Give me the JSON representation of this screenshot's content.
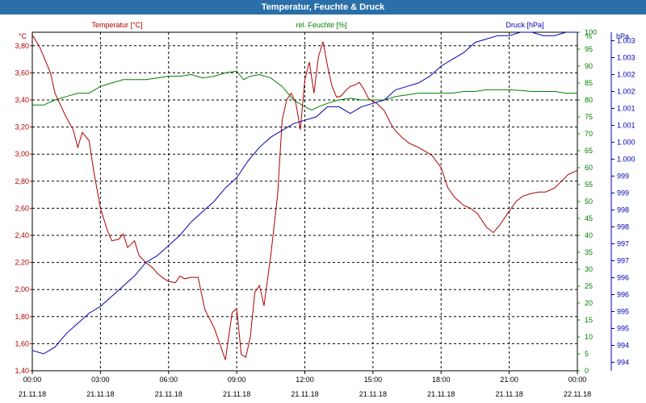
{
  "title": "Temperatur, Feuchte & Druck",
  "colors": {
    "temperature": "#b00000",
    "humidity": "#008000",
    "pressure": "#0000b4",
    "title_bg": "#2a6fa8"
  },
  "chart_data": {
    "type": "line",
    "title": "Temperatur, Feuchte & Druck",
    "x_unit": "hours from 21.11.18 00:00",
    "xlim": [
      0,
      24
    ],
    "x_ticks": [
      {
        "time": "00:00",
        "date": "21.11.18"
      },
      {
        "time": "03:00",
        "date": "21.11.18"
      },
      {
        "time": "06:00",
        "date": "21.11.18"
      },
      {
        "time": "09:00",
        "date": "21.11.18"
      },
      {
        "time": "12:00",
        "date": "21.11.18"
      },
      {
        "time": "15:00",
        "date": "21.11.18"
      },
      {
        "time": "18:00",
        "date": "21.11.18"
      },
      {
        "time": "21:00",
        "date": "21.11.18"
      },
      {
        "time": "00:00",
        "date": "22.11.18"
      }
    ],
    "axes": {
      "temperature": {
        "unit": "°C",
        "ylim": [
          1.4,
          3.9
        ],
        "ticks": [
          "1,40",
          "1,60",
          "1,80",
          "2,00",
          "2,20",
          "2,40",
          "2,60",
          "2,80",
          "3,00",
          "3,20",
          "3,40",
          "3,60",
          "3,80"
        ]
      },
      "humidity": {
        "unit": "%",
        "ylim": [
          0,
          100
        ],
        "ticks": [
          "0",
          "5",
          "10",
          "15",
          "20",
          "25",
          "30",
          "35",
          "40",
          "45",
          "50",
          "55",
          "60",
          "65",
          "70",
          "75",
          "80",
          "85",
          "90",
          "95",
          "100"
        ]
      },
      "pressure": {
        "unit": "hPa",
        "ylim": [
          993.5,
          1003.5
        ],
        "ticks": [
          "994",
          "994",
          "995",
          "995",
          "996",
          "996",
          "997",
          "997",
          "998",
          "998",
          "999",
          "999",
          "1.000",
          "1.000",
          "1.001",
          "1.001",
          "1.002",
          "1.002",
          "1.003",
          "1.003"
        ]
      }
    },
    "legend": [
      "Temperatur [°C]",
      "rel. Feuchte [%]",
      "Druck [hPa]"
    ],
    "series": [
      {
        "name": "Temperatur [°C]",
        "axis": "temperature",
        "x": [
          0,
          0.3,
          0.5,
          0.8,
          1,
          1.3,
          1.5,
          1.8,
          2,
          2.2,
          2.5,
          2.7,
          3,
          3.3,
          3.5,
          3.8,
          4,
          4.2,
          4.5,
          4.7,
          5,
          5.3,
          5.5,
          5.8,
          6,
          6.3,
          6.5,
          6.7,
          7,
          7.3,
          7.6,
          8,
          8.3,
          8.5,
          8.8,
          9,
          9.2,
          9.4,
          9.6,
          9.8,
          10,
          10.2,
          10.5,
          10.8,
          11,
          11.2,
          11.4,
          11.6,
          11.8,
          12,
          12.2,
          12.4,
          12.6,
          12.8,
          13,
          13.2,
          13.4,
          13.6,
          13.8,
          14,
          14.2,
          14.4,
          14.6,
          14.8,
          15,
          15.2,
          15.5,
          15.8,
          16,
          16.3,
          16.6,
          17,
          17.3,
          17.6,
          18,
          18.3,
          18.6,
          19,
          19.3,
          19.6,
          20,
          20.3,
          20.6,
          21,
          21.3,
          21.6,
          22,
          22.3,
          22.6,
          23,
          23.3,
          23.6,
          24
        ],
        "values": [
          3.88,
          3.8,
          3.72,
          3.6,
          3.45,
          3.34,
          3.27,
          3.18,
          3.05,
          3.16,
          3.1,
          2.88,
          2.6,
          2.44,
          2.36,
          2.37,
          2.41,
          2.31,
          2.36,
          2.25,
          2.2,
          2.16,
          2.12,
          2.08,
          2.06,
          2.05,
          2.1,
          2.08,
          2.09,
          2.09,
          1.85,
          1.72,
          1.58,
          1.48,
          1.83,
          1.86,
          1.52,
          1.5,
          1.65,
          1.98,
          2.03,
          1.88,
          2.25,
          2.7,
          3.25,
          3.4,
          3.45,
          3.38,
          3.18,
          3.55,
          3.68,
          3.45,
          3.72,
          3.83,
          3.65,
          3.5,
          3.42,
          3.43,
          3.47,
          3.5,
          3.51,
          3.53,
          3.48,
          3.41,
          3.39,
          3.37,
          3.32,
          3.22,
          3.17,
          3.12,
          3.08,
          3.05,
          3.02,
          2.99,
          2.9,
          2.75,
          2.68,
          2.62,
          2.6,
          2.56,
          2.46,
          2.42,
          2.48,
          2.58,
          2.65,
          2.69,
          2.71,
          2.72,
          2.72,
          2.75,
          2.8,
          2.85,
          2.88
        ]
      },
      {
        "name": "rel. Feuchte [%]",
        "axis": "humidity",
        "x": [
          0,
          0.5,
          1,
          1.5,
          2,
          2.5,
          3,
          3.5,
          4,
          4.5,
          5,
          5.5,
          6,
          6.5,
          7,
          7.5,
          8,
          8.5,
          9,
          9.3,
          9.6,
          10,
          10.5,
          11,
          11.5,
          12,
          12.3,
          12.6,
          13,
          13.5,
          14,
          14.5,
          15,
          15.5,
          16,
          16.5,
          17,
          17.5,
          18,
          18.5,
          19,
          19.5,
          20,
          20.5,
          21,
          21.5,
          22,
          22.5,
          23,
          23.5,
          24
        ],
        "values": [
          78.5,
          78.5,
          80,
          81,
          82,
          82,
          84,
          85,
          86,
          86,
          86,
          86.5,
          87,
          87,
          87.5,
          86.5,
          87,
          88,
          88.5,
          86,
          87,
          87.5,
          86.5,
          84,
          80,
          78,
          77,
          78,
          79,
          80,
          80.5,
          80,
          80,
          80,
          81,
          81.5,
          82,
          82,
          82,
          82,
          82.5,
          82.5,
          83,
          83,
          83,
          82.8,
          82.5,
          82.5,
          82.5,
          82,
          82
        ]
      },
      {
        "name": "Druck [hPa]",
        "axis": "pressure",
        "x": [
          0,
          0.5,
          1,
          1.5,
          2,
          2.5,
          3,
          3.5,
          4,
          4.5,
          5,
          5.5,
          6,
          6.5,
          7,
          7.5,
          8,
          8.5,
          9,
          9.5,
          10,
          10.5,
          11,
          11.5,
          12,
          12.5,
          13,
          13.5,
          14,
          14.5,
          15,
          15.5,
          16,
          16.5,
          17,
          17.5,
          18,
          18.5,
          19,
          19.5,
          20,
          20.5,
          21,
          21.5,
          22,
          22.5,
          23,
          23.5,
          24
        ],
        "values": [
          994.1,
          994,
          994.2,
          994.6,
          994.9,
          995.2,
          995.4,
          995.7,
          996,
          996.3,
          996.7,
          996.9,
          997.2,
          997.5,
          997.9,
          998.2,
          998.5,
          998.9,
          999.2,
          999.7,
          1000.1,
          1000.4,
          1000.6,
          1000.8,
          1000.9,
          1001,
          1001.3,
          1001.3,
          1001.1,
          1001.3,
          1001.4,
          1001.5,
          1001.8,
          1001.9,
          1002,
          1002.2,
          1002.5,
          1002.7,
          1002.9,
          1003.2,
          1003.3,
          1003.4,
          1003.4,
          1003.5,
          1003.5,
          1003.4,
          1003.4,
          1003.5,
          1003.5
        ]
      }
    ]
  }
}
